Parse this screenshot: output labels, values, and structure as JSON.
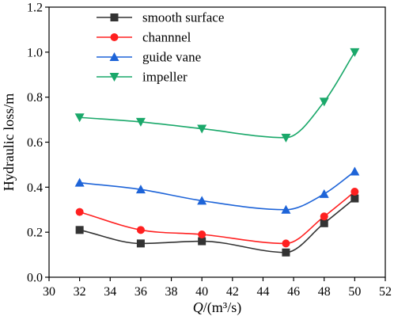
{
  "chart_data": {
    "type": "line",
    "xlabel_symbol": "Q",
    "xlabel_unit": "/(m³/s)",
    "ylabel": "Hydraulic loss/m",
    "xlim": [
      30,
      52
    ],
    "ylim": [
      0.0,
      1.2
    ],
    "xticks": [
      30,
      32,
      34,
      36,
      38,
      40,
      42,
      44,
      46,
      48,
      50,
      52
    ],
    "xtick_labels": [
      "30",
      "32",
      "34",
      "36",
      "38",
      "40",
      "42",
      "44",
      "46",
      "48",
      "50",
      "52"
    ],
    "yticks": [
      0.0,
      0.2,
      0.4,
      0.6,
      0.8,
      1.0,
      1.2
    ],
    "ytick_labels": [
      "0.0",
      "0.2",
      "0.4",
      "0.6",
      "0.8",
      "1.0",
      "1.2"
    ],
    "grid": false,
    "legend_position": "top-left",
    "x": [
      32,
      36,
      40,
      45.5,
      48,
      50
    ],
    "series": [
      {
        "name": "smooth surface",
        "marker": "square",
        "color": "#333333",
        "values": [
          0.21,
          0.15,
          0.16,
          0.11,
          0.24,
          0.35
        ]
      },
      {
        "name": "channnel",
        "marker": "circle",
        "color": "#ff2020",
        "values": [
          0.29,
          0.21,
          0.19,
          0.15,
          0.27,
          0.38
        ]
      },
      {
        "name": "guide vane",
        "marker": "triangle-up",
        "color": "#1e64d8",
        "values": [
          0.42,
          0.39,
          0.34,
          0.3,
          0.37,
          0.47
        ]
      },
      {
        "name": "impeller",
        "marker": "triangle-down",
        "color": "#1aa86a",
        "values": [
          0.71,
          0.69,
          0.66,
          0.62,
          0.78,
          1.0
        ]
      }
    ]
  }
}
